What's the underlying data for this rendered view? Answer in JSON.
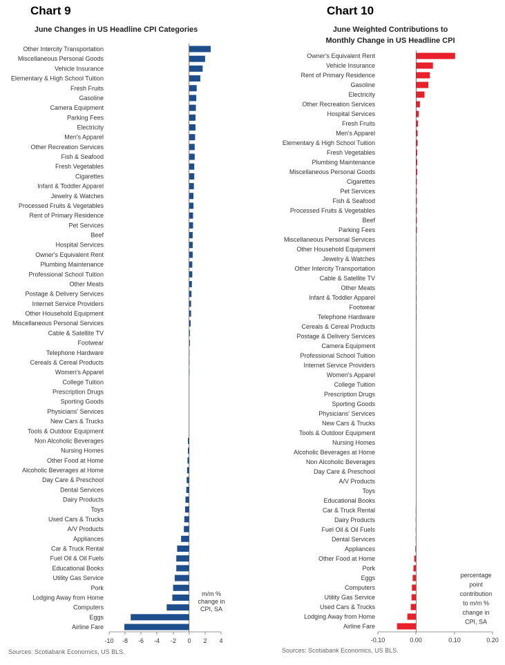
{
  "chart_data": [
    {
      "id": "chart9",
      "type": "bar",
      "orientation": "horizontal",
      "chart_number": "Chart 9",
      "title": "June Changes in US Headline CPI Categories",
      "note": [
        "m/m %",
        "change in",
        "CPI, SA"
      ],
      "source": "Sources: Scotiabank Economics, US BLS.",
      "xlim": [
        -10,
        4
      ],
      "xticks": [
        "-10",
        "-8",
        "-6",
        "-4",
        "-2",
        "0",
        "2",
        "4"
      ],
      "bar_color": "#1f4e8c",
      "categories": [
        "Other Intercity Transportation",
        "Miscellaneous Personal Goods",
        "Vehicle Insurance",
        "Elementary & High School Tuition",
        "Fresh Fruits",
        "Gasoline",
        "Camera Equipment",
        "Parking Fees",
        "Electricity",
        "Men's Apparel",
        "Other Recreation Services",
        "Fish & Seafood",
        "Fresh Vegetables",
        "Cigarettes",
        "Infant & Toddler Apparel",
        "Jewelry & Watches",
        "Processed Fruits & Vegetables",
        "Rent of Primary Residence",
        "Pet Services",
        "Beef",
        "Hospital Services",
        "Owner's Equivalent Rent",
        "Plumbing Maintenance",
        "Professional School Tuition",
        "Other Meats",
        "Postage & Delivery Services",
        "Internet Service Providers",
        "Other Household Equipment",
        "Miscellaneous Personal Services",
        "Cable & Satellite TV",
        "Footwear",
        "Telephone Hardware",
        "Cereals & Cereal Products",
        "Women's Apparel",
        "College Tuition",
        "Prescription Drugs",
        "Sporting Goods",
        "Physicians' Services",
        "New Cars & Trucks",
        "Tools & Outdoor Equipment",
        "Non Alcoholic Beverages",
        "Nursing Homes",
        "Other Food at Home",
        "Alcoholic Beverages at Home",
        "Day Care & Preschool",
        "Dental Services",
        "Dairy Products",
        "Toys",
        "Used Cars & Trucks",
        "A/V Products",
        "Appliances",
        "Car & Truck Rental",
        "Fuel Oil & Oil Fuels",
        "Educational Books",
        "Utility Gas Service",
        "Pork",
        "Lodging Away from Home",
        "Computers",
        "Eggs",
        "Airline Fare"
      ],
      "values": [
        2.7,
        2.0,
        1.7,
        1.4,
        0.95,
        0.9,
        0.85,
        0.8,
        0.8,
        0.75,
        0.7,
        0.7,
        0.65,
        0.65,
        0.6,
        0.55,
        0.55,
        0.5,
        0.5,
        0.45,
        0.45,
        0.45,
        0.4,
        0.4,
        0.35,
        0.3,
        0.25,
        0.25,
        0.2,
        0.1,
        0.1,
        0.05,
        0.05,
        0.05,
        0.0,
        0.0,
        0.0,
        0.0,
        0.0,
        0.0,
        -0.15,
        -0.15,
        -0.2,
        -0.25,
        -0.3,
        -0.35,
        -0.45,
        -0.5,
        -0.6,
        -0.65,
        -1.0,
        -1.5,
        -1.6,
        -1.6,
        -1.8,
        -2.0,
        -2.1,
        -2.8,
        -7.3,
        -8.1
      ]
    },
    {
      "id": "chart10",
      "type": "bar",
      "orientation": "horizontal",
      "chart_number": "Chart 10",
      "title": [
        "June Weighted Contributions to",
        "Monthly Change in US Headline CPI"
      ],
      "note": [
        "percentage",
        "point",
        "contribution",
        "to m/m %",
        "change in",
        "CPI, SA"
      ],
      "source": "Sources: Scotiabank Economics, US BLS.",
      "xlim": [
        -0.1,
        0.2
      ],
      "xticks": [
        "-0.10",
        "0.00",
        "0.10",
        "0.20"
      ],
      "bar_color": "#e8202a",
      "categories": [
        "Owner's Equivalent Rent",
        "Vehicle Insurance",
        "Rent of Primary Residence",
        "Gasoline",
        "Electricity",
        "Other Recreation Services",
        "Hospital Services",
        "Fresh Fruits",
        "Men's Apparel",
        "Elementary & High School Tuition",
        "Fresh Vegetables",
        "Plumbing Maintenance",
        "Miscellaneous Personal Goods",
        "Cigarettes",
        "Pet Services",
        "Fish & Seafood",
        "Processed Fruits & Vegetables",
        "Beef",
        "Parking Fees",
        "Miscellaneous Personal Services",
        "Other Household Equipment",
        "Jewelry & Watches",
        "Other Intercity Transportation",
        "Cable & Satellite TV",
        "Other Meats",
        "Infant & Toddler Apparel",
        "Footwear",
        "Telephone Hardware",
        "Cereals & Cereal Products",
        "Postage & Delivery Services",
        "Camera Equipment",
        "Professional School Tuition",
        "Internet Service Providers",
        "Women's Apparel",
        "College Tuition",
        "Prescription Drugs",
        "Sporting Goods",
        "Physicians' Services",
        "New Cars & Trucks",
        "Tools & Outdoor Equipment",
        "Nursing Homes",
        "Alcoholic Beverages at Home",
        "Non Alcoholic Beverages",
        "Day Care & Preschool",
        "A/V Products",
        "Toys",
        "Educational Books",
        "Car & Truck Rental",
        "Dairy Products",
        "Fuel Oil & Oil Fuels",
        "Dental Services",
        "Appliances",
        "Other Food at Home",
        "Pork",
        "Eggs",
        "Computers",
        "Utility Gas Service",
        "Used Cars & Trucks",
        "Lodging Away from Home",
        "Airline Fare"
      ],
      "values": [
        0.102,
        0.044,
        0.036,
        0.032,
        0.022,
        0.01,
        0.007,
        0.005,
        0.004,
        0.004,
        0.003,
        0.003,
        0.003,
        0.002,
        0.002,
        0.002,
        0.002,
        0.002,
        0.002,
        0.001,
        0.001,
        0.001,
        0.001,
        0.001,
        0.001,
        0.001,
        0.001,
        0.001,
        0.0005,
        0.0005,
        0.0005,
        0.0005,
        0.0005,
        0.0005,
        0.0,
        0.0,
        0.0,
        0.0,
        0.0,
        0.0,
        0.0,
        0.0,
        0.0,
        0.0,
        0.0,
        0.0,
        0.0,
        -0.001,
        -0.001,
        -0.001,
        -0.001,
        -0.002,
        -0.005,
        -0.007,
        -0.009,
        -0.011,
        -0.012,
        -0.014,
        -0.023,
        -0.05
      ]
    }
  ]
}
